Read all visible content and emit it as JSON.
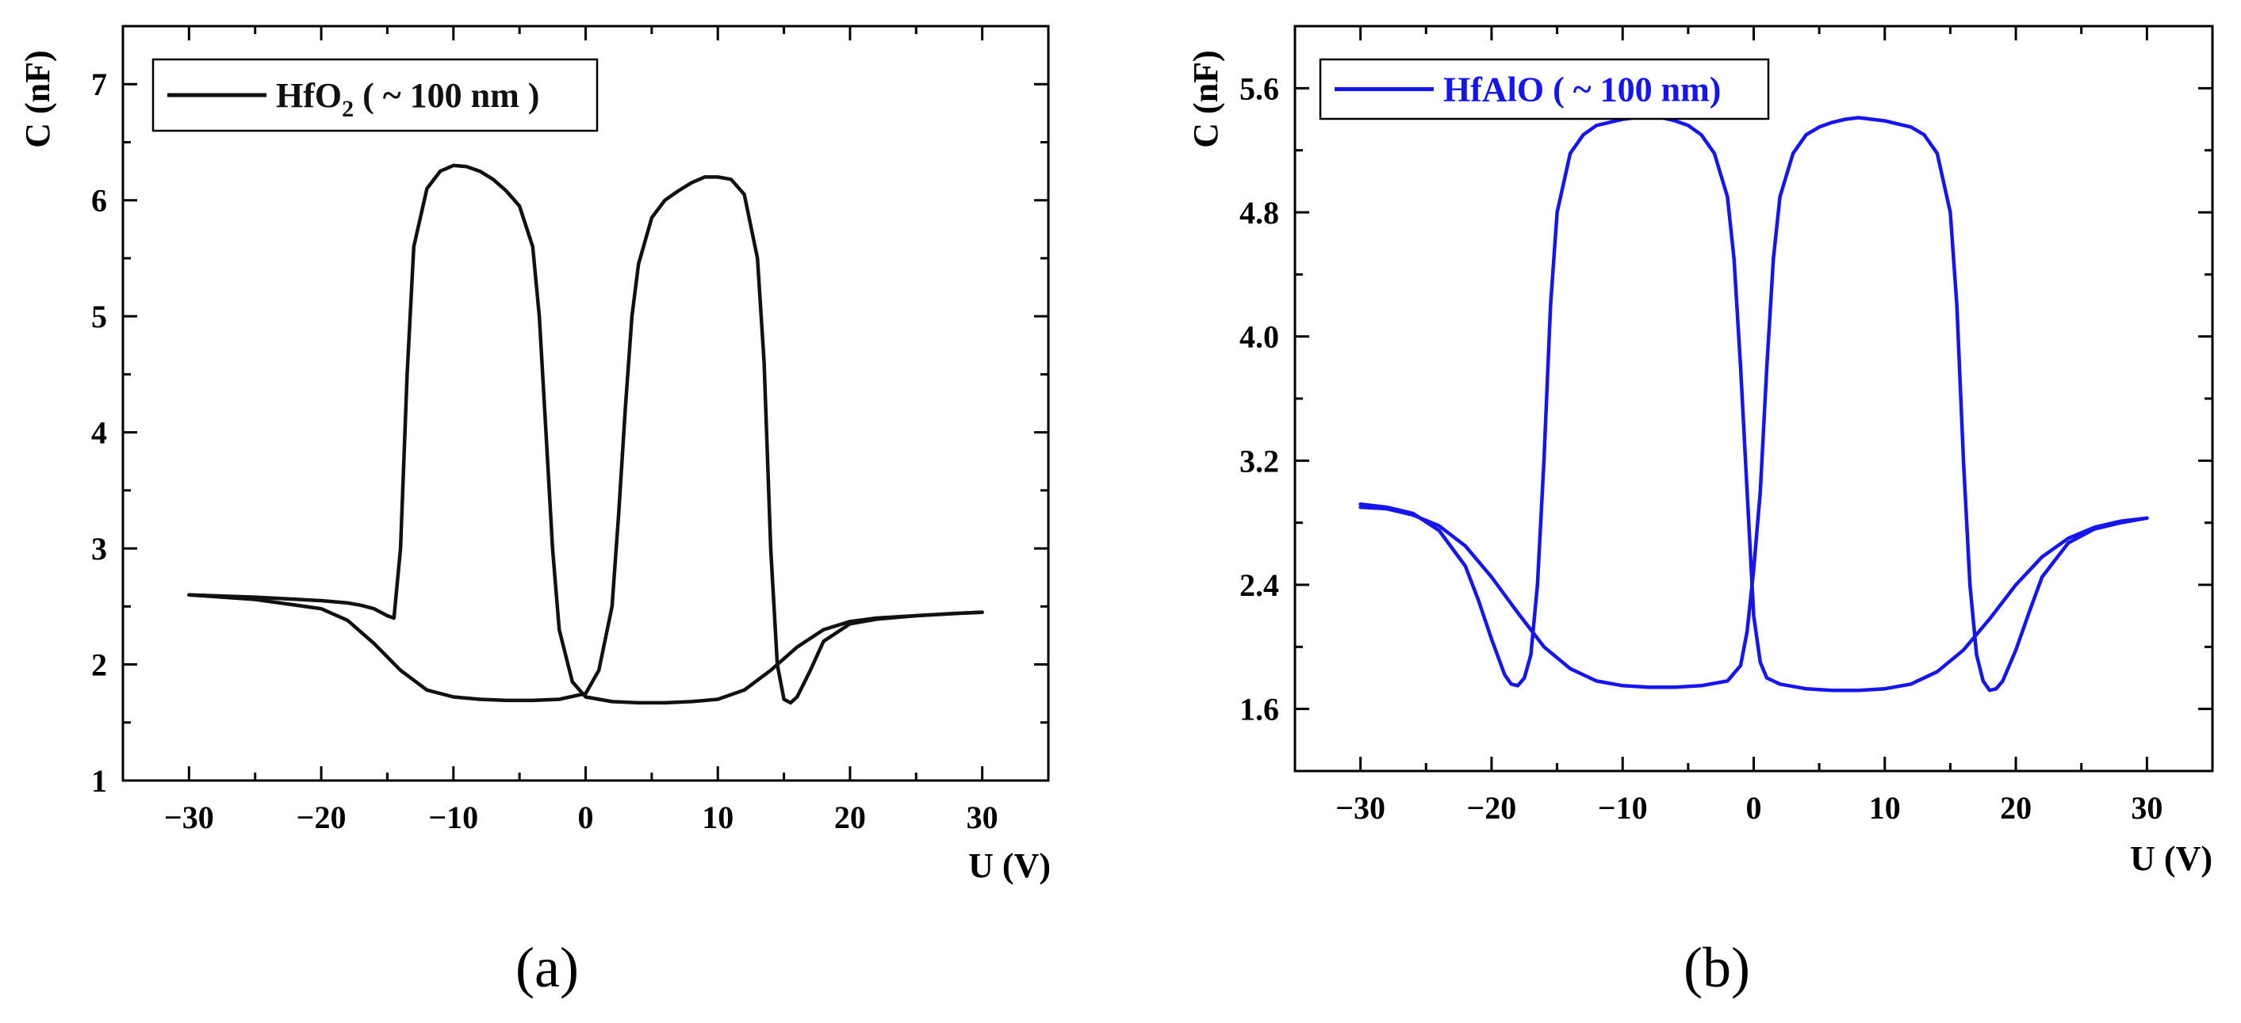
{
  "chart_data": [
    {
      "type": "line",
      "panel_label": "(a)",
      "xlabel": "U (V)",
      "ylabel": "C (nF)",
      "xlim": [
        -35,
        35
      ],
      "ylim": [
        1,
        7.5
      ],
      "xticks": [
        -30,
        -20,
        -10,
        0,
        10,
        20,
        30
      ],
      "xtick_labels": [
        "−30",
        "−20",
        "−10",
        "0",
        "10",
        "20",
        "30"
      ],
      "yticks": [
        1,
        2,
        3,
        4,
        5,
        6,
        7
      ],
      "ytick_labels": [
        "1",
        "2",
        "3",
        "4",
        "5",
        "6",
        "7"
      ],
      "legend": {
        "position": "top-left",
        "main": "HfO",
        "sub": "2",
        "rest": " ( ~ 100 nm )"
      },
      "color": "#111111",
      "series": [
        {
          "name": "HfO2 (~100 nm) sweep 1",
          "x": [
            -30,
            -25,
            -20,
            -18,
            -17,
            -16,
            -15.5,
            -15,
            -14.5,
            -14,
            -13.5,
            -13,
            -12,
            -11,
            -10,
            -9,
            -8,
            -7,
            -6,
            -5,
            -4,
            -3.5,
            -3,
            -2.5,
            -2,
            -1,
            0,
            2,
            4,
            6,
            8,
            10,
            12,
            14,
            16,
            18,
            20,
            22,
            25,
            28,
            30
          ],
          "y": [
            2.6,
            2.58,
            2.55,
            2.53,
            2.51,
            2.48,
            2.45,
            2.42,
            2.4,
            3.0,
            4.5,
            5.6,
            6.1,
            6.25,
            6.3,
            6.29,
            6.25,
            6.18,
            6.08,
            5.95,
            5.6,
            5.0,
            4.0,
            3.0,
            2.3,
            1.85,
            1.72,
            1.68,
            1.67,
            1.67,
            1.68,
            1.7,
            1.78,
            1.95,
            2.15,
            2.3,
            2.37,
            2.4,
            2.42,
            2.44,
            2.45
          ]
        },
        {
          "name": "HfO2 (~100 nm) sweep 2",
          "x": [
            30,
            28,
            25,
            22,
            20,
            18,
            17,
            16,
            15.5,
            15,
            14.5,
            14,
            13.5,
            13,
            12,
            11,
            10,
            9,
            8,
            7,
            6,
            5,
            4,
            3.5,
            3,
            2.5,
            2,
            1,
            0,
            -2,
            -4,
            -6,
            -8,
            -10,
            -12,
            -14,
            -16,
            -18,
            -20,
            -25,
            -30
          ],
          "y": [
            2.45,
            2.44,
            2.42,
            2.39,
            2.35,
            2.2,
            1.95,
            1.72,
            1.67,
            1.7,
            2.0,
            3.0,
            4.6,
            5.5,
            6.05,
            6.18,
            6.2,
            6.2,
            6.15,
            6.08,
            6.0,
            5.85,
            5.45,
            5.0,
            4.2,
            3.3,
            2.5,
            1.95,
            1.75,
            1.7,
            1.69,
            1.69,
            1.7,
            1.72,
            1.78,
            1.95,
            2.18,
            2.38,
            2.48,
            2.56,
            2.6
          ]
        }
      ]
    },
    {
      "type": "line",
      "panel_label": "(b)",
      "xlabel": "U (V)",
      "ylabel": "C (nF)",
      "xlim": [
        -35,
        35
      ],
      "ylim": [
        1.2,
        6.0
      ],
      "xticks": [
        -30,
        -20,
        -10,
        0,
        10,
        20,
        30
      ],
      "xtick_labels": [
        "−30",
        "−20",
        "−10",
        "0",
        "10",
        "20",
        "30"
      ],
      "yticks": [
        1.6,
        2.4,
        3.2,
        4.0,
        4.8,
        5.6
      ],
      "ytick_labels": [
        "1.6",
        "2.4",
        "3.2",
        "4.0",
        "4.8",
        "5.6"
      ],
      "legend": {
        "position": "top-left",
        "main": "HfAlO ( ~ 100 nm)",
        "sub": "",
        "rest": ""
      },
      "color": "#1515ee",
      "series": [
        {
          "name": "HfAlO (~100 nm) sweep 1",
          "x": [
            -30,
            -28,
            -26,
            -24,
            -22,
            -21,
            -20,
            -19,
            -18.5,
            -18,
            -17.5,
            -17,
            -16.5,
            -16,
            -15.5,
            -15,
            -14,
            -13,
            -12,
            -11,
            -10,
            -9,
            -8,
            -7,
            -6,
            -5,
            -4,
            -3,
            -2,
            -1.5,
            -1,
            -0.5,
            0,
            0.5,
            1,
            2,
            4,
            6,
            8,
            10,
            12,
            14,
            16,
            18,
            20,
            22,
            24,
            26,
            28,
            30
          ],
          "y": [
            2.92,
            2.9,
            2.86,
            2.75,
            2.52,
            2.3,
            2.05,
            1.82,
            1.76,
            1.75,
            1.8,
            1.95,
            2.4,
            3.2,
            4.2,
            4.8,
            5.18,
            5.3,
            5.36,
            5.38,
            5.4,
            5.41,
            5.42,
            5.41,
            5.39,
            5.36,
            5.3,
            5.18,
            4.9,
            4.5,
            3.8,
            3.0,
            2.2,
            1.9,
            1.8,
            1.76,
            1.73,
            1.72,
            1.72,
            1.73,
            1.76,
            1.84,
            1.98,
            2.18,
            2.4,
            2.58,
            2.7,
            2.77,
            2.81,
            2.83
          ]
        },
        {
          "name": "HfAlO (~100 nm) sweep 2",
          "x": [
            30,
            28,
            26,
            24,
            22,
            21,
            20,
            19,
            18.5,
            18,
            17.5,
            17,
            16.5,
            16,
            15.5,
            15,
            14,
            13,
            12,
            11,
            10,
            9,
            8,
            7,
            6,
            5,
            4,
            3,
            2,
            1.5,
            1,
            0.5,
            0,
            -0.5,
            -1,
            -2,
            -4,
            -6,
            -8,
            -10,
            -12,
            -14,
            -16,
            -18,
            -20,
            -22,
            -24,
            -26,
            -28,
            -30
          ],
          "y": [
            2.83,
            2.8,
            2.76,
            2.67,
            2.45,
            2.22,
            1.98,
            1.78,
            1.73,
            1.72,
            1.78,
            1.95,
            2.4,
            3.2,
            4.2,
            4.8,
            5.18,
            5.3,
            5.35,
            5.37,
            5.39,
            5.4,
            5.41,
            5.4,
            5.38,
            5.35,
            5.3,
            5.18,
            4.9,
            4.5,
            3.8,
            3.0,
            2.5,
            2.1,
            1.88,
            1.78,
            1.75,
            1.74,
            1.74,
            1.75,
            1.78,
            1.86,
            2.0,
            2.22,
            2.45,
            2.65,
            2.78,
            2.85,
            2.89,
            2.9
          ]
        }
      ]
    }
  ]
}
